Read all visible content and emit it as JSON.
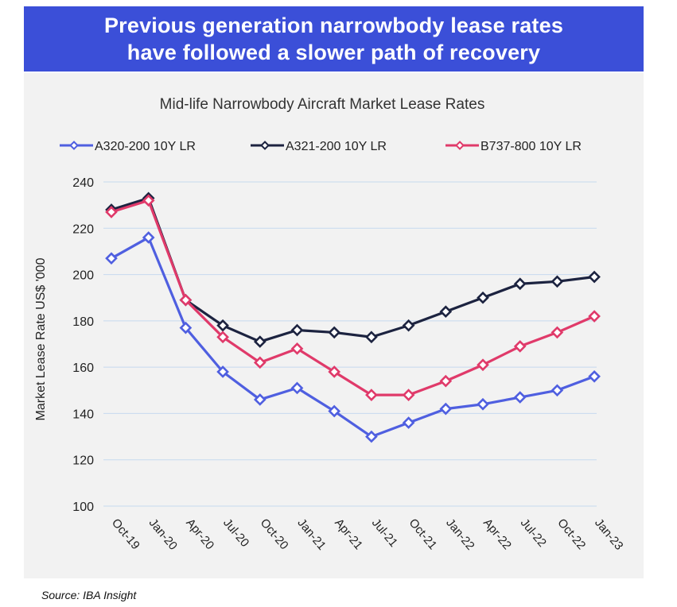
{
  "banner": {
    "line1": "Previous generation narrowbody lease rates",
    "line2": "have followed a slower path of recovery"
  },
  "source": "Source: IBA Insight",
  "colors": {
    "banner_bg": "#3b4fd8",
    "panel_bg": "#f2f2f2",
    "a320": "#4f5fe0",
    "a321": "#1c2340",
    "b737": "#e03a6a"
  },
  "chart_data": {
    "type": "line",
    "title": "Mid-life Narrowbody Aircraft Market Lease Rates",
    "xlabel": "",
    "ylabel": "Market Lease Rate US$ '000",
    "ylim": [
      100,
      240
    ],
    "yticks": [
      100,
      120,
      140,
      160,
      180,
      200,
      220,
      240
    ],
    "grid": true,
    "legend_position": "top",
    "categories": [
      "Oct-19",
      "Jan-20",
      "Apr-20",
      "Jul-20",
      "Oct-20",
      "Jan-21",
      "Apr-21",
      "Jul-21",
      "Oct-21",
      "Jan-22",
      "Apr-22",
      "Jul-22",
      "Oct-22",
      "Jan-23"
    ],
    "series": [
      {
        "name": "A320-200 10Y LR",
        "color": "#4f5fe0",
        "values": [
          207,
          216,
          177,
          158,
          146,
          151,
          141,
          130,
          136,
          142,
          144,
          147,
          150,
          156
        ]
      },
      {
        "name": "A321-200 10Y LR",
        "color": "#1c2340",
        "values": [
          228,
          233,
          189,
          178,
          171,
          176,
          175,
          173,
          178,
          184,
          190,
          196,
          197,
          199
        ]
      },
      {
        "name": "B737-800 10Y LR",
        "color": "#e03a6a",
        "values": [
          227,
          232,
          189,
          173,
          162,
          168,
          158,
          148,
          148,
          154,
          161,
          169,
          175,
          182
        ]
      }
    ]
  }
}
